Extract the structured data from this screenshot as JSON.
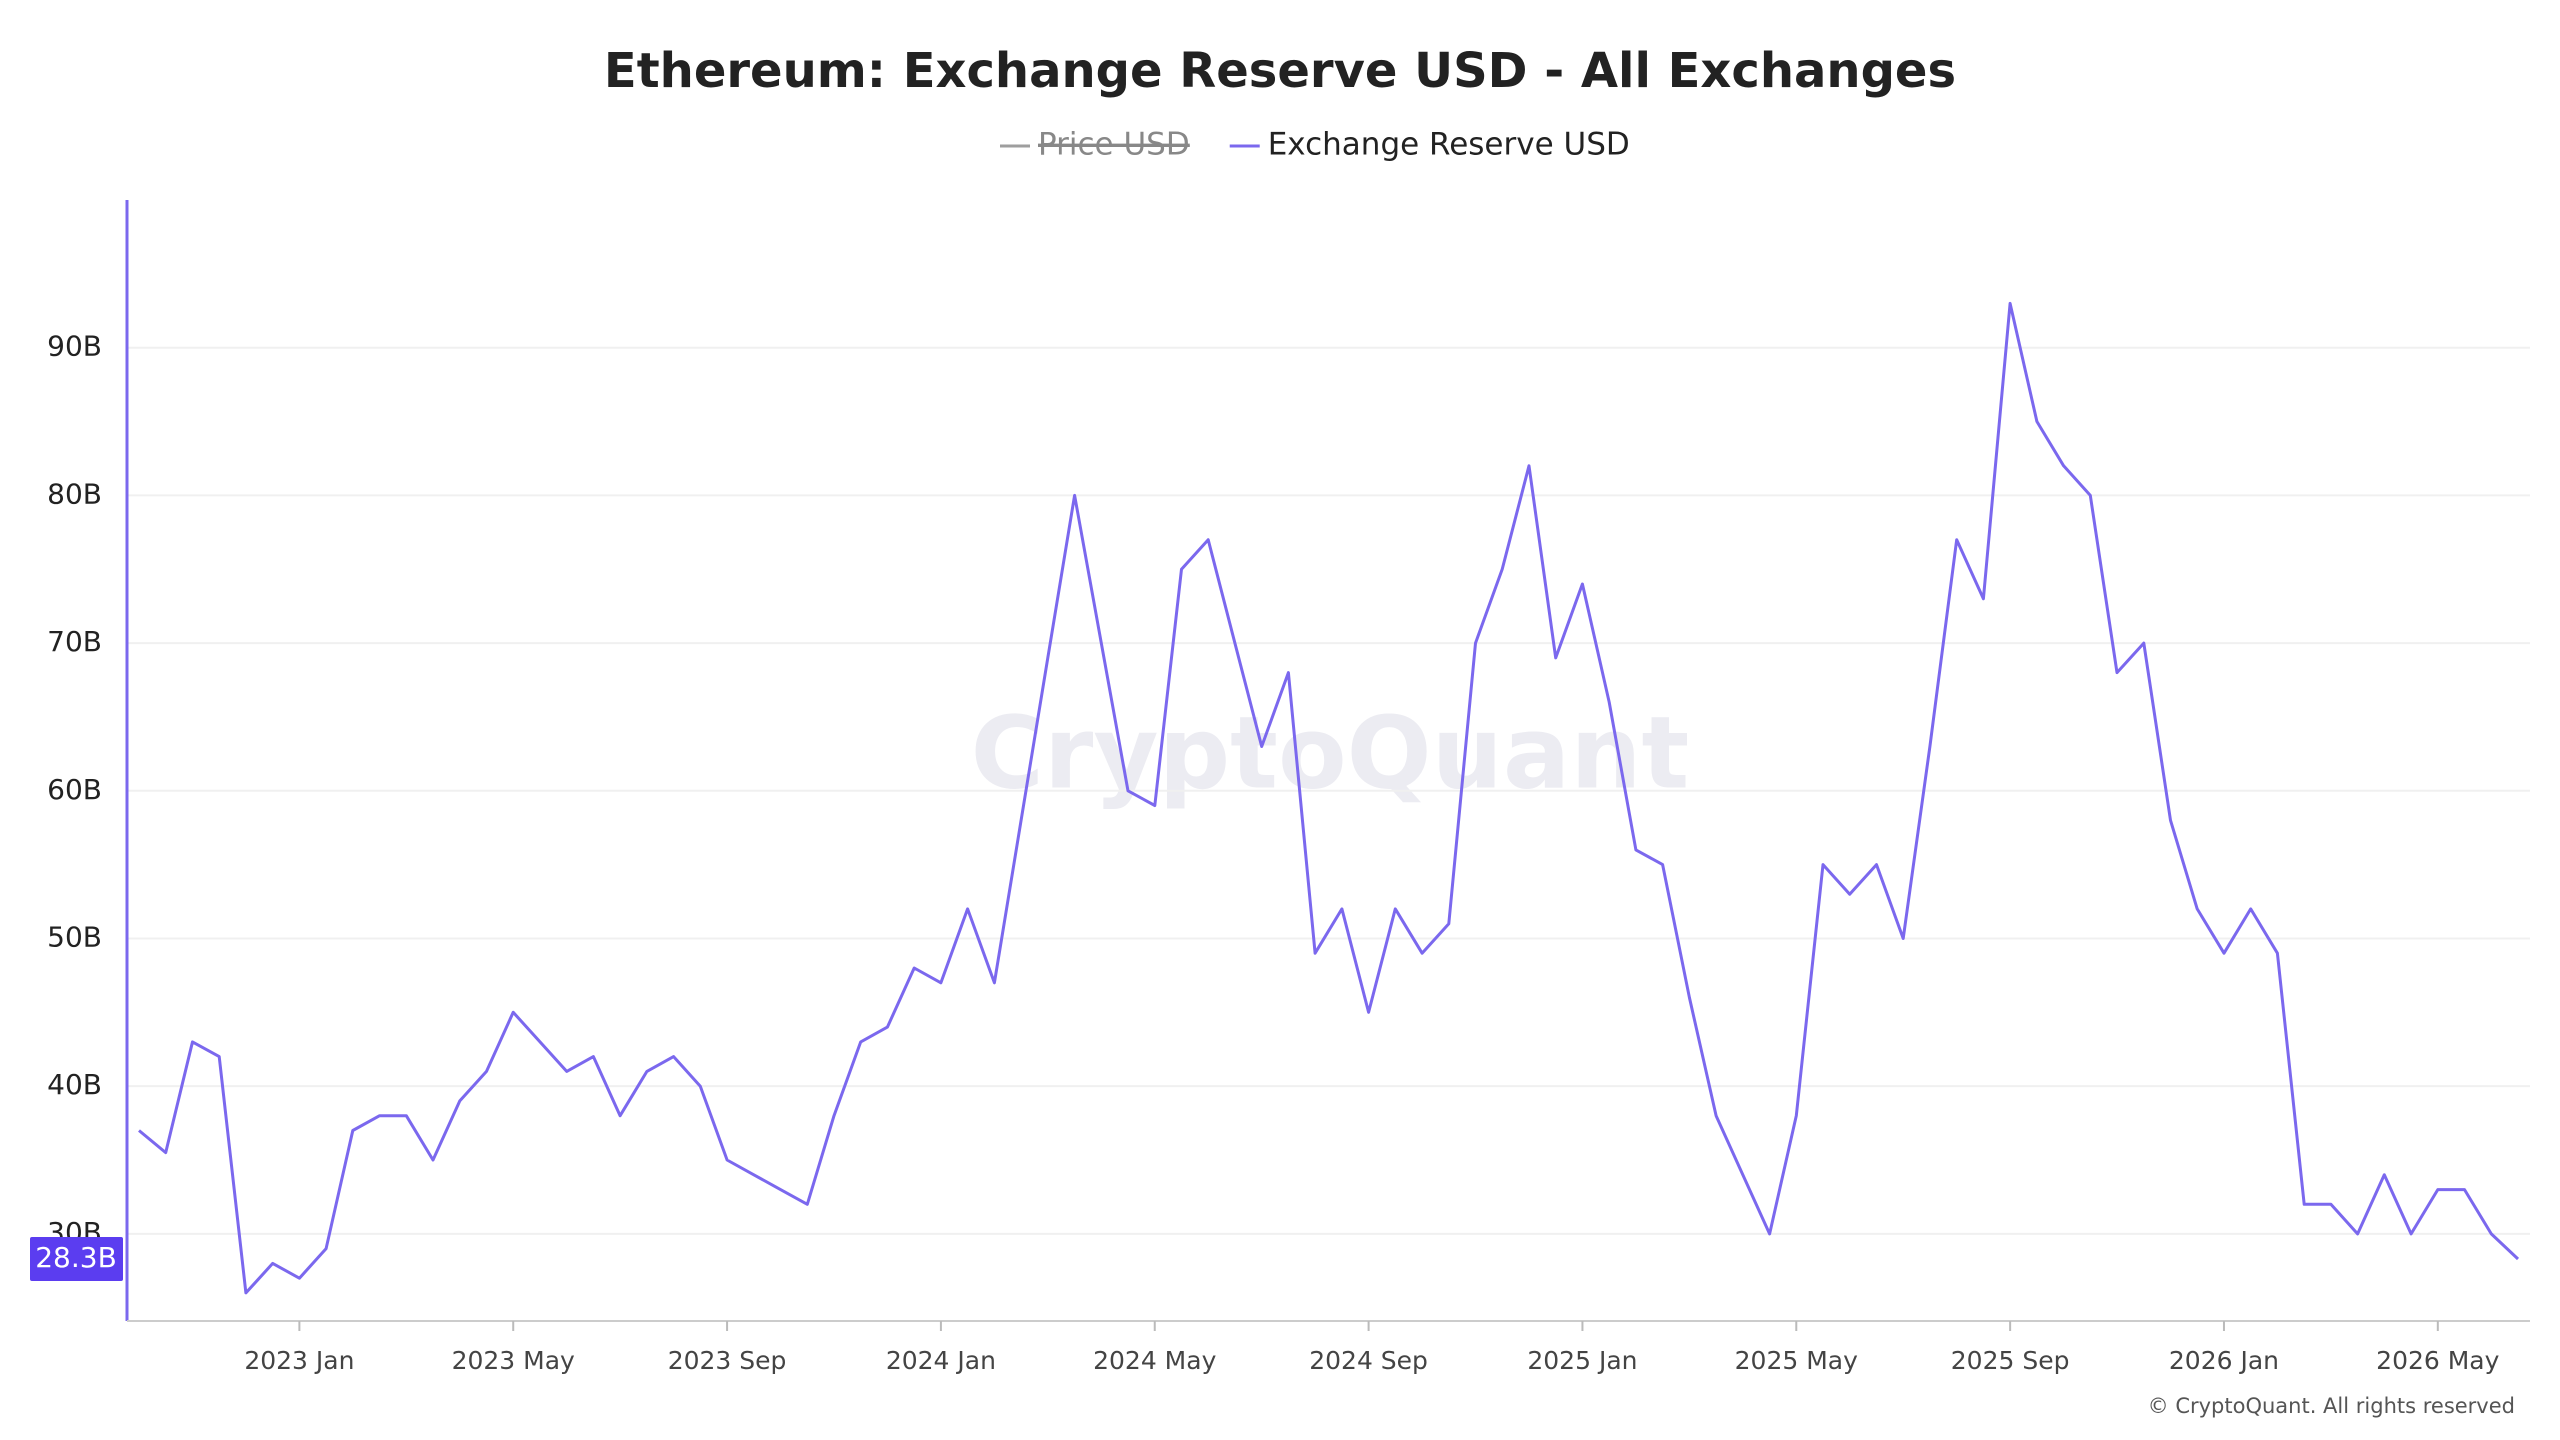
{
  "chart_data": {
    "type": "line",
    "title": "Ethereum: Exchange Reserve USD - All Exchanges",
    "legend": [
      {
        "name": "Price USD",
        "color": "#9e9e9e",
        "hidden": true
      },
      {
        "name": "Exchange Reserve USD",
        "color": "#7b68ee",
        "hidden": false
      }
    ],
    "categories": [
      null,
      null,
      null,
      null,
      null,
      null,
      "2023 Jan",
      null,
      null,
      null,
      null,
      null,
      null,
      null,
      "2023 May",
      null,
      null,
      null,
      null,
      null,
      null,
      null,
      "2023 Sep",
      null,
      null,
      null,
      null,
      null,
      null,
      null,
      "2024 Jan",
      null,
      null,
      null,
      null,
      null,
      null,
      null,
      "2024 May",
      null,
      null,
      null,
      null,
      null,
      null,
      null,
      "2024 Sep",
      null,
      null,
      null,
      null,
      null,
      null,
      null,
      "2025 Jan",
      null,
      null,
      null,
      null,
      null,
      null,
      null,
      "2025 May",
      null,
      null,
      null,
      null,
      null,
      null,
      null,
      "2025 Sep",
      null,
      null,
      null,
      null,
      null,
      null,
      null,
      "2026 Jan",
      null,
      null,
      null,
      null,
      null,
      null,
      null,
      "2026 May",
      null,
      null,
      null
    ],
    "series": [
      {
        "name": "Exchange Reserve USD",
        "color": "#7b68ee",
        "values": [
          37,
          35.5,
          43,
          42,
          26,
          28,
          27,
          29,
          37,
          38,
          38,
          35,
          39,
          41,
          45,
          43,
          41,
          42,
          38,
          41,
          42,
          40,
          35,
          34,
          33,
          32,
          38,
          43,
          44,
          48,
          47,
          52,
          47,
          58,
          69,
          80,
          70,
          60,
          59,
          75,
          77,
          70,
          63,
          68,
          49,
          52,
          45,
          52,
          49,
          51,
          70,
          75,
          82,
          69,
          74,
          66,
          56,
          55,
          46,
          38,
          34,
          30,
          38,
          55,
          53,
          55,
          50,
          63,
          77,
          73,
          93,
          85,
          82,
          80,
          68,
          70,
          58,
          52,
          49,
          52,
          49,
          32,
          32,
          30,
          34,
          30,
          33,
          33,
          30,
          28.3
        ],
        "last_label": "28.3B"
      }
    ],
    "ylim": [
      24.1,
      100
    ],
    "yticks": [
      {
        "value": 30,
        "label": "30B"
      },
      {
        "value": 40,
        "label": "40B"
      },
      {
        "value": 50,
        "label": "50B"
      },
      {
        "value": 60,
        "label": "60B"
      },
      {
        "value": 70,
        "label": "70B"
      },
      {
        "value": 80,
        "label": "80B"
      },
      {
        "value": 90,
        "label": "90B"
      }
    ],
    "grid": true,
    "watermark": "CryptoQuant",
    "footer": "© CryptoQuant. All rights reserved"
  }
}
